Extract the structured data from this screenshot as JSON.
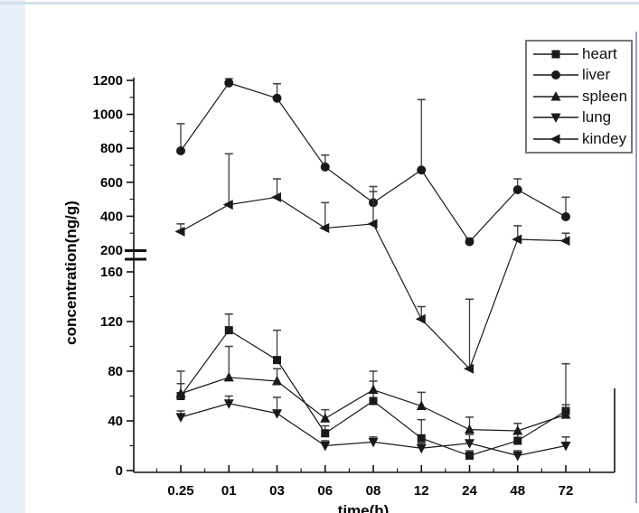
{
  "page": {
    "background": "#ffffff",
    "left_strip_color": "#eaf0f9",
    "top_border_color": "#d2dfee",
    "right_border_color": "#92a3b8"
  },
  "chart_data": {
    "type": "line",
    "title": "",
    "xlabel": "time(h)",
    "ylabel": "concentration(ng/g)",
    "x_categories": [
      "0.25",
      "01",
      "03",
      "06",
      "08",
      "12",
      "24",
      "48",
      "72"
    ],
    "grid": false,
    "legend_position": "top-right",
    "y_axis": {
      "broken": true,
      "lower_ticks": [
        0,
        40,
        80,
        120,
        160
      ],
      "lower_minor_ticks": [
        20,
        60,
        100,
        140
      ],
      "upper_ticks": [
        200,
        400,
        600,
        800,
        1000,
        1200
      ],
      "upper_minor_ticks": [
        300,
        500,
        700,
        900,
        1100
      ],
      "lower_range": [
        0,
        170
      ],
      "upper_range": [
        200,
        1260
      ]
    },
    "series_color": "#1a1a1a",
    "errorbar_color": "#3d3d3d",
    "series": [
      {
        "name": "heart",
        "marker": "square",
        "values": [
          60,
          113,
          89,
          30,
          56,
          26,
          12,
          24,
          48
        ],
        "errors_plus": [
          10,
          13,
          24,
          6,
          16,
          15,
          4,
          6,
          38
        ]
      },
      {
        "name": "liver",
        "marker": "circle",
        "values": [
          785,
          1185,
          1095,
          690,
          480,
          672,
          250,
          556,
          397
        ],
        "errors_plus": [
          160,
          25,
          85,
          70,
          95,
          415,
          20,
          64,
          115
        ]
      },
      {
        "name": "spleen",
        "marker": "triangle-up",
        "values": [
          62,
          75,
          72,
          42,
          65,
          52,
          33,
          32,
          45
        ],
        "errors_plus": [
          18,
          25,
          10,
          7,
          15,
          11,
          10,
          6,
          8
        ]
      },
      {
        "name": "lung",
        "marker": "triangle-down",
        "values": [
          43,
          54,
          46,
          20,
          23,
          18,
          22,
          12,
          20
        ],
        "errors_plus": [
          5,
          6,
          13,
          4,
          4,
          4,
          7,
          4,
          7
        ]
      },
      {
        "name": "kindey",
        "marker": "triangle-left",
        "values": [
          310,
          468,
          512,
          330,
          355,
          122,
          82,
          264,
          255
        ],
        "errors_plus": [
          45,
          300,
          108,
          150,
          190,
          10,
          56,
          80,
          45
        ]
      }
    ]
  }
}
